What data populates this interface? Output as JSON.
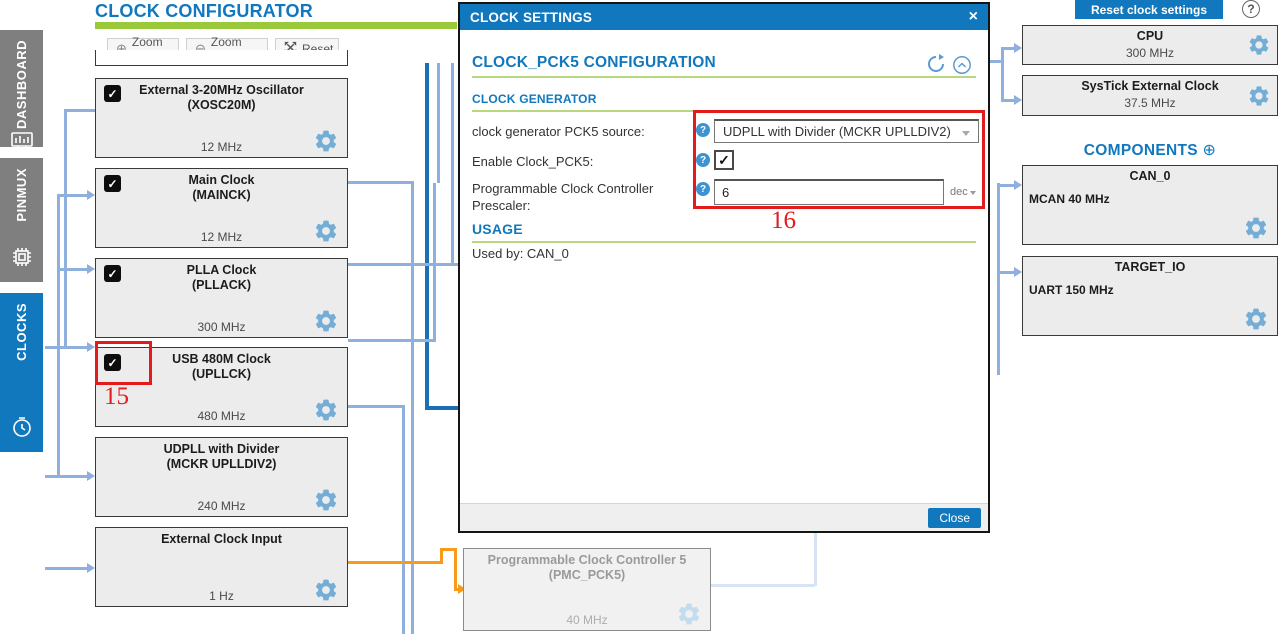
{
  "app": {
    "title": "CLOCK CONFIGURATOR"
  },
  "colors": {
    "accent_blue": "#1278be",
    "green_bar": "#9aca3c",
    "line_blue": "#8fafdd",
    "line_dark_blue": "#1c6fb5",
    "line_orange": "#f89a1c",
    "annotation_red": "#e31b1c",
    "gear_blue": "#74aed6",
    "block_bg": "#ececec"
  },
  "icons": {
    "check_glyph": "✓",
    "close_glyph": "×",
    "zoom_in_glyph": "⊕",
    "zoom_out_glyph": "⊖",
    "plus_glyph": "⊕",
    "help_glyph": "?"
  },
  "sidebar": {
    "tabs": [
      {
        "label": "DASHBOARD",
        "icon": "dashboard-icon",
        "active": false
      },
      {
        "label": "PINMUX",
        "icon": "chip-icon",
        "active": false
      },
      {
        "label": "CLOCKS",
        "icon": "clock-icon",
        "active": true
      }
    ]
  },
  "toolbar": {
    "zoom_in": "Zoom in",
    "zoom_out": "Zoom out",
    "reset": "Reset"
  },
  "clock_blocks": [
    {
      "title": "External 3-20MHz Oscillator",
      "subtitle": "(XOSC20M)",
      "frequency": "12 MHz",
      "checkbox": true
    },
    {
      "title": "Main Clock",
      "subtitle": "(MAINCK)",
      "frequency": "12 MHz",
      "checkbox": true
    },
    {
      "title": "PLLA Clock",
      "subtitle": "(PLLACK)",
      "frequency": "300 MHz",
      "checkbox": true
    },
    {
      "title": "USB 480M Clock",
      "subtitle": "(UPLLCK)",
      "frequency": "480 MHz",
      "checkbox": true
    },
    {
      "title": "UDPLL with Divider",
      "subtitle": "(MCKR UPLLDIV2)",
      "frequency": "240 MHz",
      "checkbox": false
    },
    {
      "title": "External Clock Input",
      "subtitle": "",
      "frequency": "1 Hz",
      "checkbox": false
    }
  ],
  "dialog": {
    "title": "CLOCK SETTINGS",
    "section1": "CLOCK_PCK5 CONFIGURATION",
    "section2": "CLOCK GENERATOR",
    "fields": [
      {
        "label": "clock generator PCK5 source:",
        "type": "select",
        "value": "UDPLL with Divider (MCKR UPLLDIV2)"
      },
      {
        "label": "Enable Clock_PCK5:",
        "type": "checkbox",
        "checked": true
      },
      {
        "label": "Programmable Clock Controller Prescaler:",
        "type": "text",
        "value": "6",
        "suffix": "dec"
      }
    ],
    "usage_heading": "USAGE",
    "usage_text": "Used by: CAN_0",
    "close_button": "Close"
  },
  "right_panel": {
    "reset_button": "Reset clock settings",
    "cpu": {
      "title": "CPU",
      "frequency": "300 MHz"
    },
    "systick": {
      "title": "SysTick External Clock",
      "frequency": "37.5 MHz"
    },
    "components_heading": "COMPONENTS",
    "components": [
      {
        "title": "CAN_0",
        "detail": "MCAN 40 MHz"
      },
      {
        "title": "TARGET_IO",
        "detail": "UART 150 MHz"
      }
    ]
  },
  "background_block": {
    "title": "Programmable Clock Controller 5",
    "subtitle": "(PMC_PCK5)",
    "frequency": "40 MHz"
  },
  "annotations": [
    {
      "label": "15"
    },
    {
      "label": "16"
    }
  ]
}
